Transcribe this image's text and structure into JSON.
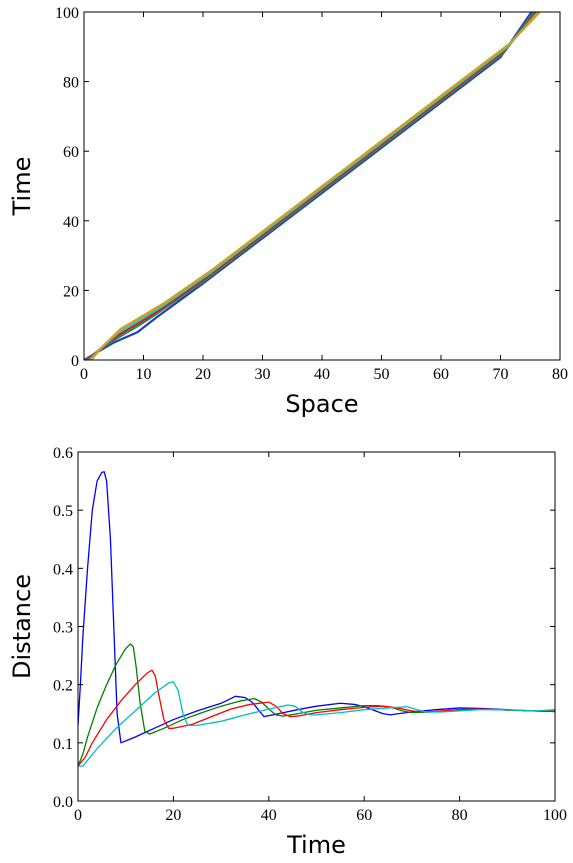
{
  "chart_data": [
    {
      "type": "line",
      "xlabel": "Space",
      "ylabel": "Time",
      "xlim": [
        0,
        80
      ],
      "ylim": [
        0,
        100
      ],
      "xticks": [
        "0",
        "10",
        "20",
        "30",
        "40",
        "50",
        "60",
        "70",
        "80"
      ],
      "yticks": [
        "0",
        "20",
        "40",
        "60",
        "80",
        "100"
      ],
      "grid": false,
      "series": [
        {
          "color": "#1f3fbf",
          "x": [
            0,
            2,
            5,
            9,
            12,
            20,
            30,
            40,
            50,
            60,
            70,
            75.2
          ],
          "y": [
            0,
            2,
            5,
            8,
            12,
            22,
            35,
            48,
            61,
            74,
            87,
            100
          ]
        },
        {
          "color": "#2e8b57",
          "x": [
            0.3,
            2.3,
            5.3,
            9.3,
            12.4,
            20.4,
            30.4,
            40.4,
            50.4,
            60.4,
            70.4,
            75.6
          ],
          "y": [
            0,
            2.5,
            6,
            10,
            13.5,
            23,
            36,
            49,
            62,
            75,
            88,
            100
          ]
        },
        {
          "color": "#d7191c",
          "x": [
            0.6,
            2.6,
            5.6,
            9.6,
            12.8,
            20.8,
            30.8,
            40.8,
            50.8,
            60.8,
            70.8,
            76.0
          ],
          "y": [
            0,
            3,
            7,
            11,
            14.5,
            24,
            37,
            50,
            63,
            76,
            89,
            100
          ]
        },
        {
          "color": "#2ac7c7",
          "x": [
            0.9,
            2.9,
            5.9,
            9.9,
            13.2,
            21.2,
            31.2,
            41.2,
            51.2,
            61.2,
            71.2,
            76.3
          ],
          "y": [
            0,
            3.5,
            8,
            12,
            15.5,
            25,
            38,
            51,
            64,
            77,
            90,
            100
          ]
        },
        {
          "color": "#d4a017",
          "x": [
            1.2,
            3.2,
            6.2,
            10.2,
            13.6,
            21.6,
            31.6,
            41.6,
            51.6,
            61.6,
            71.6,
            76.6
          ],
          "y": [
            0,
            4,
            9,
            13,
            16.5,
            26,
            39,
            52,
            65,
            78,
            91,
            100
          ]
        }
      ]
    },
    {
      "type": "line",
      "xlabel": "Time",
      "ylabel": "Distance",
      "xlim": [
        0,
        100
      ],
      "ylim": [
        0,
        0.6
      ],
      "xticks": [
        "0",
        "20",
        "40",
        "60",
        "80",
        "100"
      ],
      "yticks": [
        "0.0",
        "0.1",
        "0.2",
        "0.3",
        "0.4",
        "0.5",
        "0.6"
      ],
      "grid": false,
      "series": [
        {
          "color": "#0000ff",
          "x": [
            0,
            0.5,
            1,
            2,
            3,
            4,
            5,
            5.5,
            6,
            6.8,
            7.5,
            8.2,
            9,
            12,
            16,
            20,
            25,
            30,
            33,
            35,
            36.5,
            38,
            39,
            42,
            46,
            50,
            55,
            58,
            60,
            62,
            64,
            65.5,
            67,
            70,
            75,
            80,
            85,
            90,
            95,
            100
          ],
          "y": [
            0.13,
            0.2,
            0.28,
            0.4,
            0.5,
            0.55,
            0.565,
            0.566,
            0.55,
            0.45,
            0.3,
            0.15,
            0.1,
            0.11,
            0.125,
            0.14,
            0.155,
            0.168,
            0.18,
            0.178,
            0.17,
            0.155,
            0.145,
            0.15,
            0.157,
            0.163,
            0.168,
            0.166,
            0.162,
            0.156,
            0.15,
            0.148,
            0.15,
            0.153,
            0.157,
            0.16,
            0.159,
            0.157,
            0.155,
            0.154
          ]
        },
        {
          "color": "#008000",
          "x": [
            0,
            1,
            2,
            4,
            6,
            8,
            10,
            11,
            11.6,
            12.2,
            13,
            14,
            15,
            18,
            22,
            26,
            30,
            34,
            37,
            38.5,
            40,
            41.5,
            43,
            46,
            50,
            55,
            60,
            63,
            66,
            68,
            70,
            74,
            78,
            82,
            86,
            90,
            95,
            100
          ],
          "y": [
            0.06,
            0.08,
            0.11,
            0.16,
            0.2,
            0.235,
            0.262,
            0.27,
            0.265,
            0.23,
            0.17,
            0.12,
            0.115,
            0.125,
            0.14,
            0.152,
            0.163,
            0.172,
            0.176,
            0.17,
            0.158,
            0.148,
            0.146,
            0.15,
            0.156,
            0.16,
            0.164,
            0.164,
            0.16,
            0.155,
            0.152,
            0.153,
            0.156,
            0.158,
            0.158,
            0.156,
            0.155,
            0.154
          ]
        },
        {
          "color": "#ff0000",
          "x": [
            0,
            1.5,
            3,
            6,
            9,
            12,
            14.5,
            15.5,
            16.2,
            17,
            18,
            19,
            20,
            24,
            28,
            32,
            36,
            40,
            41.5,
            43,
            44.5,
            46,
            50,
            55,
            60,
            64,
            67,
            70,
            72,
            75,
            80,
            84,
            88,
            92,
            96,
            100
          ],
          "y": [
            0.06,
            0.075,
            0.1,
            0.14,
            0.172,
            0.2,
            0.22,
            0.225,
            0.215,
            0.18,
            0.14,
            0.125,
            0.125,
            0.132,
            0.145,
            0.158,
            0.166,
            0.17,
            0.163,
            0.15,
            0.145,
            0.146,
            0.152,
            0.157,
            0.161,
            0.163,
            0.16,
            0.155,
            0.153,
            0.154,
            0.157,
            0.158,
            0.157,
            0.156,
            0.155,
            0.154
          ]
        },
        {
          "color": "#00bfbf",
          "x": [
            0,
            1,
            2,
            4,
            8,
            12,
            16,
            19,
            20,
            21,
            22,
            23,
            25,
            30,
            35,
            40,
            44,
            45.5,
            47,
            48.5,
            50,
            55,
            60,
            65,
            69,
            71,
            73,
            76,
            80,
            84,
            88,
            92,
            96,
            100
          ],
          "y": [
            0.06,
            0.06,
            0.07,
            0.09,
            0.125,
            0.155,
            0.185,
            0.203,
            0.205,
            0.19,
            0.15,
            0.13,
            0.13,
            0.137,
            0.148,
            0.158,
            0.165,
            0.163,
            0.153,
            0.148,
            0.148,
            0.152,
            0.157,
            0.16,
            0.162,
            0.157,
            0.153,
            0.153,
            0.155,
            0.157,
            0.157,
            0.156,
            0.155,
            0.157
          ]
        }
      ]
    }
  ]
}
